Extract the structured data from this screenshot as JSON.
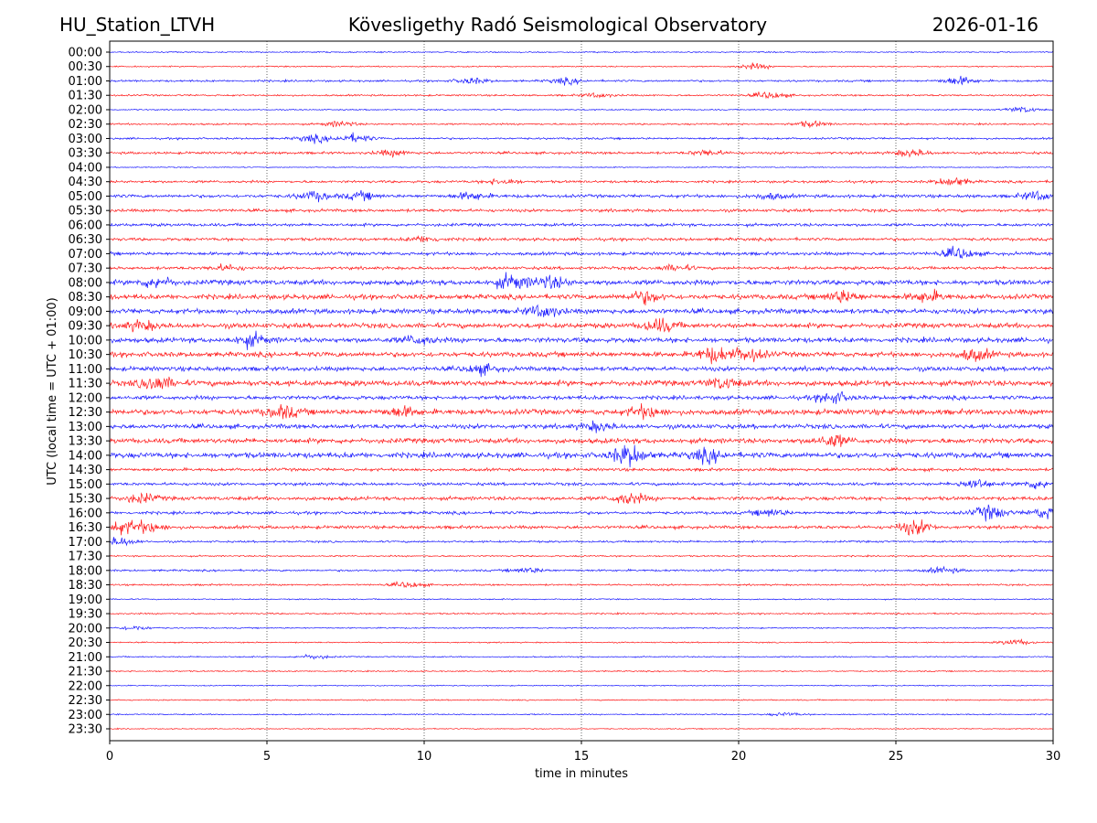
{
  "header": {
    "station": "HU_Station_LTVH",
    "observatory": "Kövesligethy Radó Seismological Observatory",
    "date": "2026-01-16"
  },
  "chart_data": {
    "type": "line",
    "title": "Kövesligethy Radó Seismological Observatory",
    "xlabel": "time in minutes",
    "ylabel": "UTC (local time = UTC + 01:00)",
    "xlim": [
      0,
      30
    ],
    "xticks": [
      "0",
      "5",
      "10",
      "15",
      "20",
      "25",
      "30"
    ],
    "grid": "vertical dotted at every 5 minutes",
    "colors": [
      "#0000ff",
      "#ff0000"
    ],
    "amplitude_units": "relative",
    "traces": [
      {
        "label": "00:00",
        "noise": 0.5,
        "bursts": []
      },
      {
        "label": "00:30",
        "noise": 0.5,
        "bursts": [
          [
            20.5,
            2
          ]
        ]
      },
      {
        "label": "01:00",
        "noise": 0.8,
        "bursts": [
          [
            11.5,
            2
          ],
          [
            14.5,
            2
          ],
          [
            27,
            3
          ]
        ]
      },
      {
        "label": "01:30",
        "noise": 0.7,
        "bursts": [
          [
            15.5,
            1.5
          ],
          [
            21,
            2.5
          ]
        ]
      },
      {
        "label": "02:00",
        "noise": 0.5,
        "bursts": [
          [
            29,
            2
          ]
        ]
      },
      {
        "label": "02:30",
        "noise": 0.7,
        "bursts": [
          [
            7.3,
            2
          ],
          [
            22.3,
            2
          ]
        ]
      },
      {
        "label": "03:00",
        "noise": 0.8,
        "bursts": [
          [
            6.5,
            2.5
          ],
          [
            7.8,
            3
          ]
        ]
      },
      {
        "label": "03:30",
        "noise": 1.0,
        "bursts": [
          [
            9,
            2
          ],
          [
            19,
            2
          ],
          [
            25.5,
            2.5
          ]
        ]
      },
      {
        "label": "04:00",
        "noise": 0.4,
        "bursts": []
      },
      {
        "label": "04:30",
        "noise": 1.0,
        "bursts": [
          [
            12.5,
            2
          ],
          [
            26.8,
            3
          ]
        ]
      },
      {
        "label": "05:00",
        "noise": 1.3,
        "bursts": [
          [
            6.5,
            3
          ],
          [
            8,
            2.5
          ],
          [
            11.5,
            2.5
          ],
          [
            21,
            2
          ],
          [
            29.5,
            3
          ]
        ]
      },
      {
        "label": "05:30",
        "noise": 1.2,
        "bursts": []
      },
      {
        "label": "06:00",
        "noise": 1.2,
        "bursts": []
      },
      {
        "label": "06:30",
        "noise": 1.2,
        "bursts": [
          [
            10,
            2
          ]
        ]
      },
      {
        "label": "07:00",
        "noise": 1.3,
        "bursts": [
          [
            27,
            4
          ]
        ]
      },
      {
        "label": "07:30",
        "noise": 1.2,
        "bursts": [
          [
            3.7,
            2
          ],
          [
            18,
            2
          ]
        ]
      },
      {
        "label": "08:00",
        "noise": 2.0,
        "bursts": [
          [
            1.5,
            3.5
          ],
          [
            12.8,
            5
          ],
          [
            14,
            4
          ]
        ]
      },
      {
        "label": "08:30",
        "noise": 2.0,
        "bursts": [
          [
            17,
            4
          ],
          [
            23.3,
            4
          ],
          [
            26,
            3.5
          ]
        ]
      },
      {
        "label": "09:00",
        "noise": 2.0,
        "bursts": [
          [
            13.8,
            4
          ]
        ]
      },
      {
        "label": "09:30",
        "noise": 2.0,
        "bursts": [
          [
            1,
            3
          ],
          [
            17.5,
            4.5
          ]
        ]
      },
      {
        "label": "10:00",
        "noise": 2.0,
        "bursts": [
          [
            4.5,
            4
          ],
          [
            9.8,
            3
          ]
        ]
      },
      {
        "label": "10:30",
        "noise": 2.0,
        "bursts": [
          [
            19.2,
            5
          ],
          [
            20.3,
            4.5
          ],
          [
            27.5,
            4
          ]
        ]
      },
      {
        "label": "11:00",
        "noise": 1.8,
        "bursts": [
          [
            11.8,
            3
          ]
        ]
      },
      {
        "label": "11:30",
        "noise": 2.2,
        "bursts": [
          [
            1.5,
            5
          ],
          [
            19.5,
            3.5
          ]
        ]
      },
      {
        "label": "12:00",
        "noise": 1.6,
        "bursts": [
          [
            23,
            4
          ]
        ]
      },
      {
        "label": "12:30",
        "noise": 2.2,
        "bursts": [
          [
            5.5,
            4
          ],
          [
            9.3,
            3
          ],
          [
            17,
            4
          ]
        ]
      },
      {
        "label": "13:00",
        "noise": 1.8,
        "bursts": [
          [
            15.5,
            3
          ]
        ]
      },
      {
        "label": "13:30",
        "noise": 2.0,
        "bursts": [
          [
            23,
            4
          ]
        ]
      },
      {
        "label": "14:00",
        "noise": 2.2,
        "bursts": [
          [
            16.5,
            7
          ],
          [
            19,
            4
          ]
        ]
      },
      {
        "label": "14:30",
        "noise": 1.2,
        "bursts": []
      },
      {
        "label": "15:00",
        "noise": 1.2,
        "bursts": [
          [
            27.5,
            3.5
          ],
          [
            29.5,
            3
          ]
        ]
      },
      {
        "label": "15:30",
        "noise": 1.5,
        "bursts": [
          [
            1,
            3
          ],
          [
            16.5,
            4
          ]
        ]
      },
      {
        "label": "16:00",
        "noise": 1.2,
        "bursts": [
          [
            21,
            2.5
          ],
          [
            28,
            5
          ],
          [
            29.8,
            4
          ]
        ]
      },
      {
        "label": "16:30",
        "noise": 1.3,
        "bursts": [
          [
            0.4,
            4
          ],
          [
            1.2,
            3.5
          ],
          [
            25.6,
            5
          ]
        ]
      },
      {
        "label": "17:00",
        "noise": 0.8,
        "bursts": [
          [
            0.3,
            3
          ]
        ]
      },
      {
        "label": "17:30",
        "noise": 0.6,
        "bursts": []
      },
      {
        "label": "18:00",
        "noise": 0.8,
        "bursts": [
          [
            13.3,
            1.8
          ],
          [
            26.5,
            2
          ]
        ]
      },
      {
        "label": "18:30",
        "noise": 0.7,
        "bursts": [
          [
            9.5,
            2
          ]
        ]
      },
      {
        "label": "19:00",
        "noise": 0.5,
        "bursts": []
      },
      {
        "label": "19:30",
        "noise": 0.6,
        "bursts": []
      },
      {
        "label": "20:00",
        "noise": 0.5,
        "bursts": [
          [
            0.8,
            1.5
          ]
        ]
      },
      {
        "label": "20:30",
        "noise": 0.5,
        "bursts": [
          [
            28.8,
            2
          ]
        ]
      },
      {
        "label": "21:00",
        "noise": 0.5,
        "bursts": [
          [
            6.5,
            1.5
          ]
        ]
      },
      {
        "label": "21:30",
        "noise": 0.5,
        "bursts": []
      },
      {
        "label": "22:00",
        "noise": 0.4,
        "bursts": []
      },
      {
        "label": "22:30",
        "noise": 0.5,
        "bursts": []
      },
      {
        "label": "23:00",
        "noise": 0.5,
        "bursts": [
          [
            21.5,
            1.2
          ]
        ]
      },
      {
        "label": "23:30",
        "noise": 0.4,
        "bursts": []
      }
    ]
  }
}
